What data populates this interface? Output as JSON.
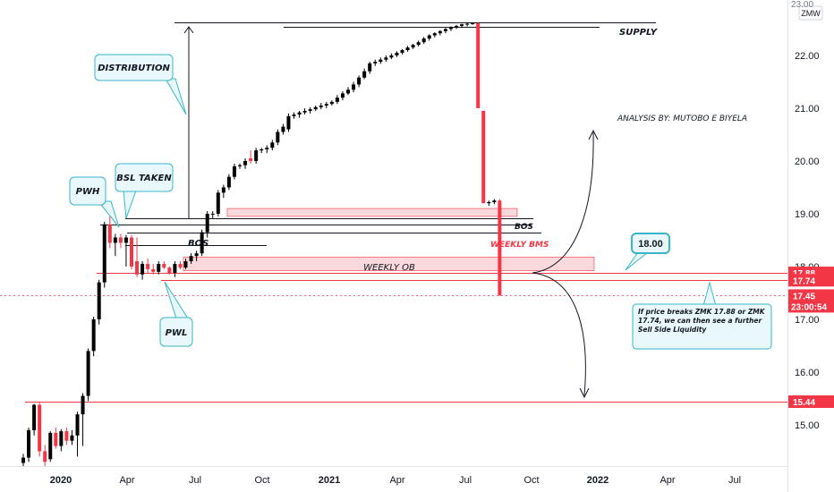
{
  "chart_data": {
    "type": "candlestick",
    "currency_badge": "ZMW",
    "x_ticks": [
      "2020",
      "Apr",
      "Jul",
      "Oct",
      "2021",
      "Apr",
      "Jul",
      "Oct",
      "2022",
      "Apr",
      "Jul"
    ],
    "y_ticks": [
      "22.00",
      "21.00",
      "20.00",
      "19.00",
      "18.00",
      "17.00",
      "16.00",
      "15.00"
    ],
    "y_top_partial": "23.00",
    "ylim": [
      14.22,
      23.05
    ],
    "price_tags": [
      {
        "label": "17.88",
        "value": 17.88,
        "color": "#f23645"
      },
      {
        "label": "17.74",
        "value": 17.74,
        "color": "#f23645"
      },
      {
        "label": "17.45",
        "sub": "23:00:54",
        "value": 17.45,
        "color": "#f23645"
      },
      {
        "label": "15.44",
        "value": 15.44,
        "color": "#f23645"
      }
    ],
    "candles": [
      {
        "o": 14.28,
        "h": 14.45,
        "l": 14.22,
        "c": 14.38
      },
      {
        "o": 14.38,
        "h": 14.95,
        "l": 14.3,
        "c": 14.9
      },
      {
        "o": 14.9,
        "h": 15.4,
        "l": 14.8,
        "c": 15.38
      },
      {
        "o": 15.38,
        "h": 15.42,
        "l": 14.4,
        "c": 14.5
      },
      {
        "o": 14.5,
        "h": 14.62,
        "l": 14.22,
        "c": 14.3
      },
      {
        "o": 14.35,
        "h": 14.88,
        "l": 14.3,
        "c": 14.85
      },
      {
        "o": 14.85,
        "h": 14.95,
        "l": 14.55,
        "c": 14.6
      },
      {
        "o": 14.6,
        "h": 14.92,
        "l": 14.5,
        "c": 14.88
      },
      {
        "o": 14.88,
        "h": 14.95,
        "l": 14.62,
        "c": 14.7
      },
      {
        "o": 14.7,
        "h": 14.9,
        "l": 14.62,
        "c": 14.8
      },
      {
        "o": 14.8,
        "h": 15.25,
        "l": 14.4,
        "c": 15.2
      },
      {
        "o": 15.2,
        "h": 15.6,
        "l": 14.6,
        "c": 15.55
      },
      {
        "o": 15.55,
        "h": 16.45,
        "l": 15.45,
        "c": 16.4
      },
      {
        "o": 16.4,
        "h": 17.05,
        "l": 16.3,
        "c": 17.0
      },
      {
        "o": 17.0,
        "h": 17.75,
        "l": 16.9,
        "c": 17.7
      },
      {
        "o": 17.7,
        "h": 18.85,
        "l": 17.6,
        "c": 18.8
      },
      {
        "o": 18.8,
        "h": 18.95,
        "l": 18.35,
        "c": 18.45
      },
      {
        "o": 18.45,
        "h": 18.62,
        "l": 18.2,
        "c": 18.55
      },
      {
        "o": 18.55,
        "h": 18.62,
        "l": 18.35,
        "c": 18.45
      },
      {
        "o": 18.45,
        "h": 18.6,
        "l": 18.0,
        "c": 18.55
      },
      {
        "o": 18.55,
        "h": 18.6,
        "l": 17.95,
        "c": 18.0
      },
      {
        "o": 18.1,
        "h": 18.55,
        "l": 17.8,
        "c": 17.85
      },
      {
        "o": 17.85,
        "h": 18.1,
        "l": 17.75,
        "c": 18.05
      },
      {
        "o": 18.05,
        "h": 18.15,
        "l": 17.88,
        "c": 17.95
      },
      {
        "o": 17.95,
        "h": 18.05,
        "l": 17.85,
        "c": 17.9
      },
      {
        "o": 17.9,
        "h": 18.1,
        "l": 17.85,
        "c": 18.05
      },
      {
        "o": 18.05,
        "h": 18.1,
        "l": 17.95,
        "c": 17.98
      },
      {
        "o": 17.98,
        "h": 18.0,
        "l": 17.85,
        "c": 17.88
      },
      {
        "o": 17.88,
        "h": 18.1,
        "l": 17.8,
        "c": 18.05
      },
      {
        "o": 18.05,
        "h": 18.1,
        "l": 17.95,
        "c": 17.98
      },
      {
        "o": 17.98,
        "h": 18.15,
        "l": 17.95,
        "c": 18.1
      },
      {
        "o": 18.1,
        "h": 18.25,
        "l": 18.05,
        "c": 18.2
      },
      {
        "o": 18.2,
        "h": 18.3,
        "l": 18.1,
        "c": 18.25
      },
      {
        "o": 18.25,
        "h": 18.7,
        "l": 18.2,
        "c": 18.65
      },
      {
        "o": 18.65,
        "h": 19.05,
        "l": 18.55,
        "c": 19.0
      },
      {
        "o": 19.0,
        "h": 19.05,
        "l": 18.9,
        "c": 19.0
      },
      {
        "o": 19.0,
        "h": 19.45,
        "l": 18.95,
        "c": 19.4
      },
      {
        "o": 19.4,
        "h": 19.55,
        "l": 19.3,
        "c": 19.5
      },
      {
        "o": 19.5,
        "h": 19.75,
        "l": 19.45,
        "c": 19.7
      },
      {
        "o": 19.7,
        "h": 19.95,
        "l": 19.65,
        "c": 19.9
      },
      {
        "o": 19.9,
        "h": 19.95,
        "l": 19.85,
        "c": 19.92
      },
      {
        "o": 19.92,
        "h": 20.05,
        "l": 19.85,
        "c": 20.0
      },
      {
        "o": 20.05,
        "h": 20.2,
        "l": 19.95,
        "c": 20.0
      },
      {
        "o": 20.0,
        "h": 20.25,
        "l": 19.95,
        "c": 20.2
      },
      {
        "o": 20.2,
        "h": 20.25,
        "l": 20.15,
        "c": 20.22
      },
      {
        "o": 20.22,
        "h": 20.3,
        "l": 20.15,
        "c": 20.25
      },
      {
        "o": 20.25,
        "h": 20.4,
        "l": 20.2,
        "c": 20.35
      },
      {
        "o": 20.35,
        "h": 20.6,
        "l": 20.3,
        "c": 20.55
      },
      {
        "o": 20.55,
        "h": 20.7,
        "l": 20.5,
        "c": 20.65
      },
      {
        "o": 20.6,
        "h": 20.9,
        "l": 20.55,
        "c": 20.85
      },
      {
        "o": 20.85,
        "h": 20.92,
        "l": 20.8,
        "c": 20.88
      },
      {
        "o": 20.88,
        "h": 20.95,
        "l": 20.82,
        "c": 20.92
      },
      {
        "o": 20.92,
        "h": 21.0,
        "l": 20.88,
        "c": 20.95
      },
      {
        "o": 20.95,
        "h": 21.02,
        "l": 20.9,
        "c": 20.98
      },
      {
        "o": 20.98,
        "h": 21.05,
        "l": 20.95,
        "c": 21.02
      },
      {
        "o": 21.02,
        "h": 21.1,
        "l": 20.98,
        "c": 21.05
      },
      {
        "o": 21.05,
        "h": 21.12,
        "l": 21.0,
        "c": 21.08
      },
      {
        "o": 21.08,
        "h": 21.15,
        "l": 21.05,
        "c": 21.12
      },
      {
        "o": 21.12,
        "h": 21.25,
        "l": 21.08,
        "c": 21.2
      },
      {
        "o": 21.2,
        "h": 21.32,
        "l": 21.15,
        "c": 21.28
      },
      {
        "o": 21.28,
        "h": 21.4,
        "l": 21.25,
        "c": 21.35
      },
      {
        "o": 21.35,
        "h": 21.5,
        "l": 21.3,
        "c": 21.45
      },
      {
        "o": 21.45,
        "h": 21.62,
        "l": 21.4,
        "c": 21.58
      },
      {
        "o": 21.58,
        "h": 21.75,
        "l": 21.55,
        "c": 21.7
      },
      {
        "o": 21.7,
        "h": 21.88,
        "l": 21.65,
        "c": 21.85
      },
      {
        "o": 21.85,
        "h": 21.92,
        "l": 21.8,
        "c": 21.88
      },
      {
        "o": 21.88,
        "h": 21.96,
        "l": 21.84,
        "c": 21.92
      },
      {
        "o": 21.92,
        "h": 22.0,
        "l": 21.88,
        "c": 21.96
      },
      {
        "o": 21.96,
        "h": 22.04,
        "l": 21.93,
        "c": 22.0
      },
      {
        "o": 22.0,
        "h": 22.08,
        "l": 21.97,
        "c": 22.05
      },
      {
        "o": 22.05,
        "h": 22.12,
        "l": 22.02,
        "c": 22.1
      },
      {
        "o": 22.1,
        "h": 22.18,
        "l": 22.07,
        "c": 22.15
      },
      {
        "o": 22.15,
        "h": 22.22,
        "l": 22.12,
        "c": 22.2
      },
      {
        "o": 22.2,
        "h": 22.28,
        "l": 22.17,
        "c": 22.25
      },
      {
        "o": 22.25,
        "h": 22.35,
        "l": 22.22,
        "c": 22.32
      },
      {
        "o": 22.32,
        "h": 22.4,
        "l": 22.28,
        "c": 22.38
      },
      {
        "o": 22.38,
        "h": 22.44,
        "l": 22.34,
        "c": 22.42
      },
      {
        "o": 22.42,
        "h": 22.48,
        "l": 22.38,
        "c": 22.46
      },
      {
        "o": 22.46,
        "h": 22.52,
        "l": 22.42,
        "c": 22.5
      },
      {
        "o": 22.5,
        "h": 22.55,
        "l": 22.46,
        "c": 22.53
      },
      {
        "o": 22.53,
        "h": 22.58,
        "l": 22.5,
        "c": 22.56
      },
      {
        "o": 22.56,
        "h": 22.6,
        "l": 22.52,
        "c": 22.59
      },
      {
        "o": 22.59,
        "h": 22.62,
        "l": 22.55,
        "c": 22.6
      },
      {
        "o": 22.6,
        "h": 22.62,
        "l": 22.58,
        "c": 22.61
      },
      {
        "o": 22.61,
        "h": 22.62,
        "l": 21.0,
        "c": 21.0
      },
      {
        "o": 20.95,
        "h": 20.95,
        "l": 19.2,
        "c": 19.2
      },
      {
        "o": 19.2,
        "h": 19.25,
        "l": 19.15,
        "c": 19.22
      },
      {
        "o": 19.22,
        "h": 19.28,
        "l": 19.18,
        "c": 19.25
      },
      {
        "o": 19.25,
        "h": 19.28,
        "l": 17.45,
        "c": 17.45
      }
    ],
    "horizontal_levels": [
      {
        "name": "supply-line",
        "value": 22.62,
        "color": "#131722"
      },
      {
        "name": "bos-line-upper",
        "value": 18.92,
        "color": "#131722"
      },
      {
        "name": "bos-line-lower",
        "value": 18.8,
        "color": "#131722"
      },
      {
        "name": "bms-line",
        "value": 18.65,
        "color": "#131722"
      },
      {
        "name": "inner-bos-line",
        "value": 18.4,
        "color": "#131722"
      },
      {
        "name": "level-17-88",
        "value": 17.88,
        "color": "#f23645"
      },
      {
        "name": "level-17-74",
        "value": 17.74,
        "color": "#f23645"
      },
      {
        "name": "level-17-45",
        "value": 17.45,
        "color": "#f23645"
      },
      {
        "name": "level-15-44",
        "value": 15.44,
        "color": "#f23645"
      }
    ],
    "zones": [
      {
        "name": "supply-zone",
        "top": 19.1,
        "bottom": 18.95,
        "color": "#f9d9dc"
      },
      {
        "name": "weekly-ob-zone",
        "top": 18.18,
        "bottom": 17.92,
        "color": "#f9d9dc"
      }
    ],
    "annotations": {
      "supply": "SUPPLY",
      "analysis": "ANALYSIS BY: MUTOBO E BIYELA",
      "bos_upper": "BOS",
      "bos_inner": "BOS",
      "weekly_bms": "WEEKLY BMS",
      "weekly_ob": "WEEKLY OB",
      "note": "If price breaks ZMK 17.88 or ZMK 17.74, we can then see a further Sell Side Liquidity"
    },
    "callouts": {
      "distribution": "DISTRIBUTION",
      "bsl_taken": "BSL TAKEN",
      "pwh": "PWH",
      "pwl": "PWL",
      "price_label": "18.00"
    }
  }
}
